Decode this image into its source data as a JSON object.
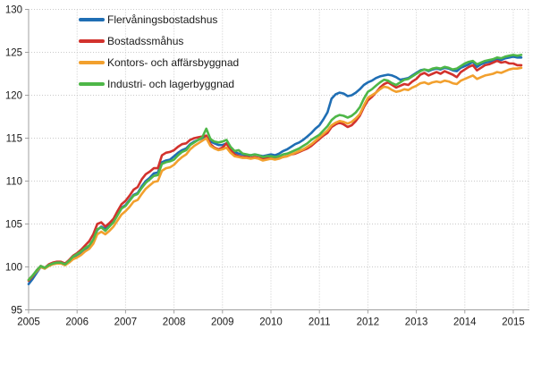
{
  "chart_data": {
    "type": "line",
    "title": "",
    "xlabel": "",
    "ylabel": "",
    "x_unit": "monthly, 2005-01 through 2015-03",
    "x_ticks": [
      2005,
      2006,
      2007,
      2008,
      2009,
      2010,
      2011,
      2012,
      2013,
      2014,
      2015
    ],
    "y_ticks": [
      95,
      100,
      105,
      110,
      115,
      120,
      125,
      130
    ],
    "xlim": [
      2005,
      2015.4
    ],
    "ylim": [
      95,
      130
    ],
    "grid": true,
    "legend_position": "top-left",
    "axis_color": "#a0a0a0",
    "grid_color": "#c9c9c9",
    "tick_label_color": "#1a1a1a",
    "series": [
      {
        "name": "Flervåningsbostadshus",
        "color": "#1f6eb4",
        "values": [
          98.0,
          98.6,
          99.3,
          100.0,
          99.8,
          100.2,
          100.4,
          100.5,
          100.5,
          100.3,
          100.6,
          101.0,
          101.2,
          101.5,
          102.0,
          102.3,
          103.0,
          104.3,
          104.7,
          104.4,
          104.9,
          105.4,
          106.2,
          106.9,
          107.2,
          107.8,
          108.4,
          108.6,
          109.4,
          110.0,
          110.4,
          110.9,
          111.0,
          112.2,
          112.4,
          112.5,
          112.9,
          113.3,
          113.6,
          113.8,
          114.3,
          114.6,
          114.8,
          115.0,
          115.2,
          114.6,
          114.4,
          114.2,
          114.2,
          114.4,
          113.9,
          113.4,
          113.2,
          113.1,
          113.0,
          113.0,
          113.1,
          113.0,
          112.9,
          113.0,
          113.1,
          113.0,
          113.2,
          113.5,
          113.7,
          114.0,
          114.3,
          114.5,
          114.8,
          115.2,
          115.6,
          116.1,
          116.5,
          117.2,
          118.0,
          119.6,
          120.1,
          120.3,
          120.2,
          119.9,
          120.0,
          120.3,
          120.7,
          121.2,
          121.5,
          121.7,
          122.0,
          122.2,
          122.3,
          122.4,
          122.3,
          122.1,
          121.8,
          121.9,
          122.0,
          122.3,
          122.6,
          122.9,
          123.0,
          122.8,
          123.0,
          123.1,
          123.0,
          123.2,
          123.1,
          122.9,
          122.8,
          123.2,
          123.4,
          123.6,
          123.9,
          123.3,
          123.6,
          123.8,
          123.9,
          124.0,
          124.2,
          124.1,
          124.3,
          124.4,
          124.5,
          124.4,
          124.4
        ]
      },
      {
        "name": "Bostadssmåhus",
        "color": "#d2322d",
        "values": [
          98.4,
          98.9,
          99.6,
          100.1,
          99.9,
          100.3,
          100.5,
          100.6,
          100.6,
          100.4,
          100.8,
          101.3,
          101.6,
          102.0,
          102.5,
          103.0,
          103.8,
          105.0,
          105.2,
          104.7,
          105.1,
          105.6,
          106.5,
          107.3,
          107.7,
          108.3,
          109.0,
          109.3,
          110.2,
          110.8,
          111.1,
          111.5,
          111.5,
          113.0,
          113.3,
          113.4,
          113.6,
          114.0,
          114.3,
          114.4,
          114.8,
          115.0,
          115.1,
          115.2,
          115.3,
          114.3,
          113.9,
          113.7,
          113.9,
          114.4,
          113.6,
          113.1,
          112.9,
          112.8,
          112.8,
          112.7,
          112.8,
          112.7,
          112.6,
          112.7,
          112.7,
          112.6,
          112.7,
          112.8,
          112.9,
          113.1,
          113.2,
          113.4,
          113.6,
          113.8,
          114.1,
          114.5,
          114.9,
          115.3,
          115.6,
          116.3,
          116.6,
          116.8,
          116.6,
          116.3,
          116.5,
          117.0,
          117.6,
          118.6,
          119.4,
          119.8,
          120.3,
          120.9,
          121.3,
          121.5,
          121.2,
          120.9,
          121.1,
          121.3,
          121.2,
          121.6,
          121.9,
          122.4,
          122.6,
          122.3,
          122.5,
          122.7,
          122.5,
          122.8,
          122.6,
          122.4,
          122.1,
          122.7,
          123.0,
          123.3,
          123.5,
          122.9,
          123.2,
          123.5,
          123.6,
          123.8,
          124.0,
          123.8,
          123.9,
          123.7,
          123.7,
          123.5,
          123.5
        ]
      },
      {
        "name": "Kontors- och affärsbyggnad",
        "color": "#f2a02e",
        "values": [
          98.5,
          99.0,
          99.5,
          100.0,
          99.8,
          100.1,
          100.3,
          100.4,
          100.4,
          100.2,
          100.5,
          100.9,
          101.1,
          101.4,
          101.8,
          102.1,
          102.7,
          103.8,
          104.1,
          103.8,
          104.2,
          104.7,
          105.4,
          106.1,
          106.5,
          107.0,
          107.6,
          107.8,
          108.5,
          109.1,
          109.5,
          109.9,
          110.0,
          111.2,
          111.5,
          111.6,
          111.9,
          112.4,
          112.8,
          113.1,
          113.7,
          114.1,
          114.4,
          114.7,
          115.0,
          114.1,
          113.8,
          113.6,
          113.7,
          113.9,
          113.3,
          112.9,
          112.8,
          112.7,
          112.7,
          112.6,
          112.7,
          112.6,
          112.4,
          112.5,
          112.6,
          112.5,
          112.6,
          112.8,
          112.9,
          113.1,
          113.3,
          113.5,
          113.7,
          114.0,
          114.3,
          114.7,
          115.1,
          115.5,
          115.9,
          116.5,
          116.8,
          117.0,
          116.9,
          116.7,
          116.9,
          117.3,
          117.8,
          118.8,
          119.7,
          120.0,
          120.3,
          120.7,
          121.0,
          120.9,
          120.6,
          120.4,
          120.5,
          120.7,
          120.6,
          120.9,
          121.1,
          121.4,
          121.5,
          121.3,
          121.5,
          121.6,
          121.5,
          121.7,
          121.6,
          121.4,
          121.3,
          121.7,
          121.9,
          122.1,
          122.3,
          121.9,
          122.1,
          122.3,
          122.4,
          122.5,
          122.7,
          122.6,
          122.8,
          123.0,
          123.1,
          123.1,
          123.2
        ]
      },
      {
        "name": "Industri- och lagerbyggnad",
        "color": "#4eb748",
        "values": [
          98.5,
          99.0,
          99.6,
          100.1,
          99.9,
          100.2,
          100.4,
          100.5,
          100.5,
          100.3,
          100.7,
          101.2,
          101.5,
          101.8,
          102.2,
          102.5,
          103.2,
          104.4,
          104.6,
          104.2,
          104.7,
          105.2,
          106.0,
          106.8,
          107.1,
          107.7,
          108.3,
          108.5,
          109.2,
          109.8,
          110.2,
          110.6,
          110.7,
          112.0,
          112.2,
          112.3,
          112.5,
          113.0,
          113.4,
          113.6,
          114.2,
          114.5,
          114.8,
          115.1,
          116.1,
          114.9,
          114.6,
          114.5,
          114.6,
          114.8,
          114.0,
          113.5,
          113.6,
          113.2,
          113.1,
          113.0,
          113.1,
          113.0,
          112.8,
          112.9,
          112.9,
          112.8,
          112.9,
          113.1,
          113.2,
          113.4,
          113.6,
          113.8,
          114.1,
          114.4,
          114.8,
          115.1,
          115.4,
          115.9,
          116.4,
          117.1,
          117.5,
          117.7,
          117.6,
          117.4,
          117.6,
          118.0,
          118.6,
          119.6,
          120.4,
          120.7,
          121.1,
          121.5,
          121.8,
          121.7,
          121.4,
          121.2,
          121.5,
          121.8,
          121.9,
          122.2,
          122.5,
          122.8,
          123.0,
          122.9,
          123.1,
          123.2,
          123.1,
          123.3,
          123.2,
          123.0,
          123.1,
          123.4,
          123.7,
          123.9,
          124.0,
          123.6,
          123.8,
          124.0,
          124.1,
          124.2,
          124.4,
          124.3,
          124.5,
          124.6,
          124.7,
          124.6,
          124.7
        ]
      }
    ]
  }
}
